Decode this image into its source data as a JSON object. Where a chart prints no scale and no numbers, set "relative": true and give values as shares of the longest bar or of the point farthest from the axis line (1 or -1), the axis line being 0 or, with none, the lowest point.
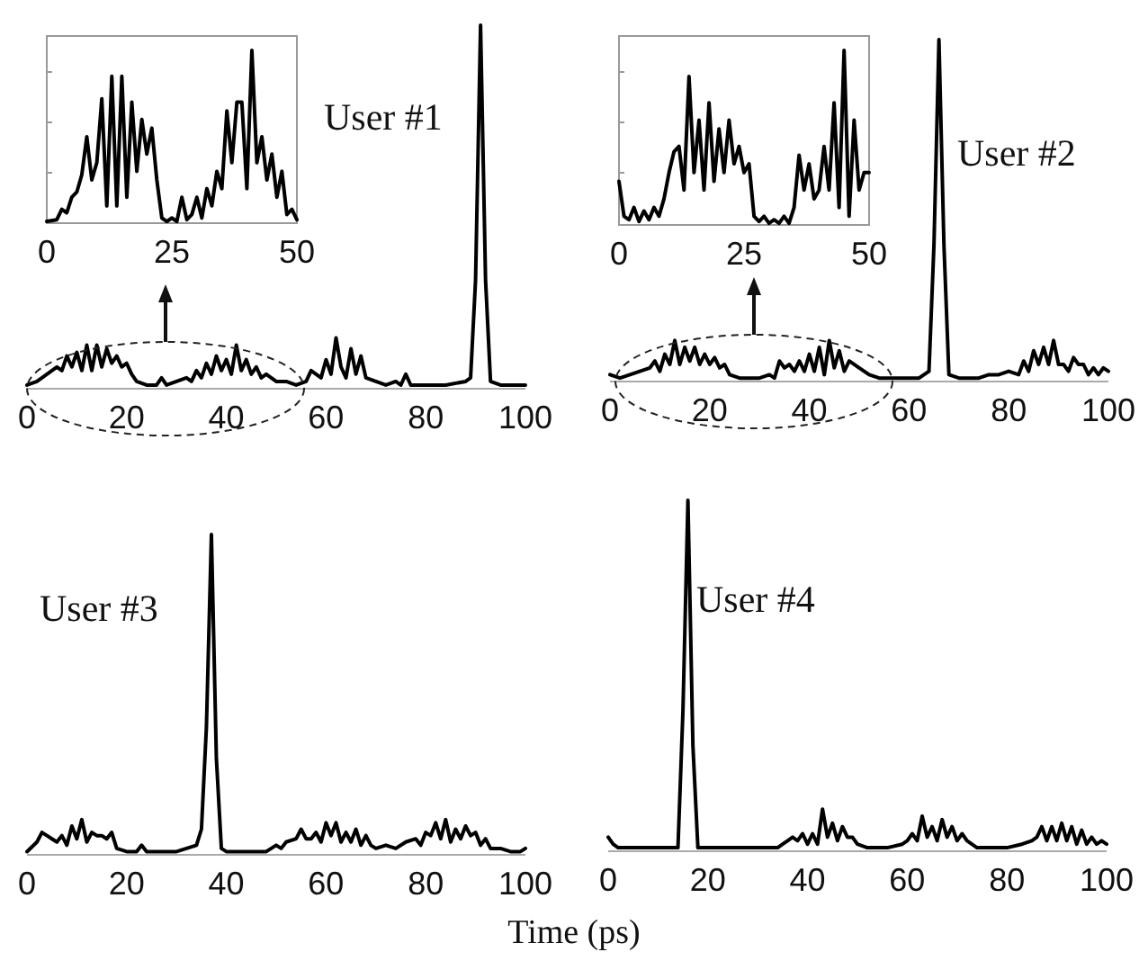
{
  "chart_data": [
    {
      "type": "line",
      "relative": true,
      "xlim": [
        0,
        100
      ],
      "xticks": [
        0,
        20,
        40,
        60,
        80,
        100
      ],
      "annotations": [
        "User #1"
      ],
      "x": [
        0,
        2,
        4,
        6,
        7,
        8,
        9,
        10,
        11,
        12,
        13,
        14,
        15,
        16,
        17,
        18,
        19,
        20,
        21,
        22,
        24,
        26,
        27,
        28,
        30,
        32,
        33,
        34,
        35,
        36,
        37,
        38,
        39,
        40,
        41,
        42,
        43,
        44,
        45,
        46,
        47,
        48,
        50,
        52,
        54,
        56,
        57,
        59,
        60,
        61,
        62,
        63,
        64,
        65,
        66,
        67,
        68,
        70,
        72,
        74,
        75,
        76,
        77,
        80,
        84,
        88,
        89,
        90,
        91,
        92,
        93,
        95,
        100
      ],
      "series": [
        {
          "color": "#000000",
          "values": [
            0.01,
            0.02,
            0.04,
            0.06,
            0.05,
            0.09,
            0.06,
            0.1,
            0.05,
            0.12,
            0.05,
            0.12,
            0.06,
            0.11,
            0.07,
            0.09,
            0.06,
            0.07,
            0.04,
            0.02,
            0.01,
            0.01,
            0.03,
            0.01,
            0.02,
            0.03,
            0.02,
            0.05,
            0.03,
            0.07,
            0.04,
            0.09,
            0.05,
            0.08,
            0.04,
            0.12,
            0.05,
            0.08,
            0.04,
            0.06,
            0.03,
            0.04,
            0.02,
            0.02,
            0.01,
            0.02,
            0.05,
            0.03,
            0.08,
            0.04,
            0.14,
            0.06,
            0.03,
            0.11,
            0.04,
            0.09,
            0.03,
            0.02,
            0.01,
            0.02,
            0.01,
            0.04,
            0.01,
            0.01,
            0.01,
            0.02,
            0.03,
            0.3,
            1,
            0.3,
            0.02,
            0.01,
            0.01
          ]
        }
      ]
    },
    {
      "type": "line",
      "relative": true,
      "xlim": [
        0,
        50
      ],
      "xticks": [
        0,
        25,
        50
      ],
      "x": [
        0,
        2,
        3,
        4,
        5,
        6,
        7,
        8,
        9,
        10,
        11,
        12,
        13,
        14,
        15,
        16,
        17,
        18,
        19,
        20,
        21,
        22,
        23,
        24,
        25,
        26,
        27,
        28,
        29,
        30,
        31,
        32,
        33,
        34,
        35,
        36,
        37,
        38,
        39,
        40,
        41,
        42,
        43,
        44,
        45,
        46,
        47,
        48,
        49,
        50
      ],
      "series": [
        {
          "color": "#000000",
          "values": [
            0.01,
            0.02,
            0.08,
            0.06,
            0.15,
            0.18,
            0.28,
            0.5,
            0.25,
            0.35,
            0.72,
            0.1,
            0.85,
            0.1,
            0.85,
            0.15,
            0.7,
            0.3,
            0.6,
            0.4,
            0.55,
            0.25,
            0.03,
            0.01,
            0.03,
            0.01,
            0.15,
            0.02,
            0.05,
            0.15,
            0.03,
            0.2,
            0.1,
            0.3,
            0.2,
            0.65,
            0.35,
            0.7,
            0.7,
            0.2,
            1,
            0.35,
            0.5,
            0.25,
            0.4,
            0.15,
            0.3,
            0.05,
            0.08,
            0.02
          ]
        }
      ]
    },
    {
      "type": "line",
      "relative": true,
      "xlim": [
        0,
        100
      ],
      "xticks": [
        0,
        20,
        40,
        60,
        80,
        100
      ],
      "annotations": [
        "User #2"
      ],
      "x": [
        0,
        2,
        4,
        6,
        8,
        9,
        10,
        11,
        12,
        13,
        14,
        15,
        16,
        17,
        18,
        19,
        20,
        21,
        22,
        23,
        24,
        26,
        28,
        30,
        32,
        33,
        34,
        35,
        36,
        37,
        38,
        39,
        40,
        41,
        42,
        43,
        44,
        45,
        46,
        47,
        48,
        50,
        52,
        54,
        58,
        62,
        64,
        65,
        66,
        67,
        68,
        70,
        74,
        76,
        78,
        80,
        82,
        83,
        84,
        85,
        86,
        87,
        88,
        89,
        90,
        91,
        92,
        93,
        94,
        95,
        96,
        97,
        98,
        99,
        100
      ],
      "series": [
        {
          "color": "#000000",
          "values": [
            0.02,
            0.01,
            0.02,
            0.03,
            0.04,
            0.06,
            0.03,
            0.08,
            0.05,
            0.12,
            0.05,
            0.1,
            0.06,
            0.1,
            0.05,
            0.08,
            0.05,
            0.07,
            0.04,
            0.05,
            0.02,
            0.01,
            0.01,
            0.01,
            0.02,
            0.01,
            0.06,
            0.04,
            0.05,
            0.03,
            0.06,
            0.03,
            0.08,
            0.03,
            0.1,
            0.02,
            0.12,
            0.04,
            0.09,
            0.03,
            0.06,
            0.04,
            0.02,
            0.01,
            0.01,
            0.01,
            0.03,
            0.4,
            1,
            0.4,
            0.02,
            0.01,
            0.01,
            0.02,
            0.02,
            0.03,
            0.02,
            0.06,
            0.03,
            0.09,
            0.05,
            0.1,
            0.05,
            0.12,
            0.05,
            0.05,
            0.03,
            0.07,
            0.05,
            0.05,
            0.02,
            0.04,
            0.02,
            0.04,
            0.03
          ]
        }
      ]
    },
    {
      "type": "line",
      "relative": true,
      "xlim": [
        0,
        50
      ],
      "xticks": [
        0,
        25,
        50
      ],
      "x": [
        0,
        1,
        2,
        3,
        4,
        5,
        6,
        7,
        8,
        9,
        10,
        11,
        12,
        13,
        14,
        15,
        16,
        17,
        18,
        19,
        20,
        21,
        22,
        23,
        24,
        25,
        26,
        27,
        28,
        29,
        30,
        31,
        32,
        33,
        34,
        35,
        36,
        37,
        38,
        39,
        40,
        41,
        42,
        43,
        44,
        45,
        46,
        47,
        48,
        49,
        50
      ],
      "series": [
        {
          "color": "#000000",
          "values": [
            0.25,
            0.05,
            0.03,
            0.1,
            0.02,
            0.08,
            0.03,
            0.1,
            0.05,
            0.15,
            0.3,
            0.42,
            0.45,
            0.2,
            0.85,
            0.3,
            0.6,
            0.2,
            0.7,
            0.25,
            0.55,
            0.3,
            0.6,
            0.35,
            0.45,
            0.3,
            0.35,
            0.05,
            0.02,
            0.05,
            0.01,
            0.03,
            0.01,
            0.05,
            0.01,
            0.1,
            0.4,
            0.2,
            0.35,
            0.15,
            0.2,
            0.45,
            0.2,
            0.7,
            0.1,
            1,
            0.05,
            0.6,
            0.2,
            0.3,
            0.3
          ]
        }
      ]
    },
    {
      "type": "line",
      "relative": true,
      "xlim": [
        0,
        100
      ],
      "xticks": [
        0,
        20,
        40,
        60,
        80,
        100
      ],
      "annotations": [
        "User #3"
      ],
      "xlabel": "Time (ps)",
      "x": [
        0,
        2,
        3,
        4,
        5,
        6,
        7,
        8,
        9,
        10,
        11,
        12,
        13,
        14,
        15,
        16,
        17,
        18,
        20,
        22,
        23,
        24,
        26,
        30,
        32,
        34,
        35,
        36,
        37,
        38,
        39,
        40,
        44,
        48,
        50,
        51,
        52,
        54,
        55,
        56,
        57,
        58,
        59,
        60,
        61,
        62,
        63,
        64,
        65,
        66,
        67,
        68,
        69,
        70,
        72,
        74,
        76,
        78,
        79,
        80,
        81,
        82,
        83,
        84,
        85,
        86,
        87,
        88,
        89,
        90,
        91,
        92,
        93,
        95,
        97,
        99,
        100
      ],
      "series": [
        {
          "color": "#000000",
          "values": [
            0.01,
            0.04,
            0.07,
            0.06,
            0.05,
            0.04,
            0.06,
            0.03,
            0.09,
            0.05,
            0.11,
            0.04,
            0.07,
            0.06,
            0.06,
            0.05,
            0.07,
            0.02,
            0.01,
            0.01,
            0.03,
            0.01,
            0.01,
            0.01,
            0.02,
            0.03,
            0.08,
            0.4,
            1,
            0.3,
            0.02,
            0.01,
            0.01,
            0.01,
            0.03,
            0.02,
            0.04,
            0.05,
            0.08,
            0.05,
            0.05,
            0.07,
            0.04,
            0.1,
            0.06,
            0.1,
            0.04,
            0.07,
            0.04,
            0.08,
            0.03,
            0.06,
            0.03,
            0.02,
            0.03,
            0.02,
            0.04,
            0.05,
            0.03,
            0.07,
            0.06,
            0.1,
            0.05,
            0.11,
            0.04,
            0.08,
            0.05,
            0.09,
            0.06,
            0.07,
            0.03,
            0.05,
            0.02,
            0.02,
            0.01,
            0.01,
            0.02
          ]
        }
      ]
    },
    {
      "type": "line",
      "relative": true,
      "xlim": [
        0,
        100
      ],
      "xticks": [
        0,
        20,
        40,
        60,
        80,
        100
      ],
      "annotations": [
        "User #4"
      ],
      "x": [
        0,
        1,
        2,
        6,
        10,
        14,
        15,
        16,
        17,
        18,
        22,
        30,
        34,
        35,
        36,
        37,
        38,
        39,
        40,
        41,
        42,
        43,
        44,
        45,
        46,
        47,
        48,
        49,
        50,
        52,
        56,
        59,
        60,
        61,
        62,
        63,
        64,
        65,
        66,
        67,
        68,
        69,
        70,
        71,
        72,
        74,
        78,
        80,
        83,
        85,
        86,
        87,
        88,
        89,
        90,
        91,
        92,
        93,
        94,
        95,
        96,
        97,
        98,
        99,
        100
      ],
      "series": [
        {
          "color": "#000000",
          "values": [
            0.04,
            0.02,
            0.01,
            0.01,
            0.01,
            0.01,
            0.4,
            1,
            0.3,
            0.01,
            0.01,
            0.01,
            0.01,
            0.02,
            0.03,
            0.04,
            0.03,
            0.05,
            0.02,
            0.05,
            0.02,
            0.12,
            0.04,
            0.08,
            0.03,
            0.07,
            0.04,
            0.04,
            0.02,
            0.01,
            0.01,
            0.02,
            0.03,
            0.05,
            0.03,
            0.1,
            0.04,
            0.07,
            0.03,
            0.09,
            0.04,
            0.07,
            0.03,
            0.05,
            0.03,
            0.01,
            0.01,
            0.01,
            0.02,
            0.03,
            0.04,
            0.07,
            0.03,
            0.07,
            0.03,
            0.08,
            0.03,
            0.07,
            0.02,
            0.06,
            0.02,
            0.04,
            0.02,
            0.03,
            0.02
          ]
        }
      ]
    }
  ]
}
